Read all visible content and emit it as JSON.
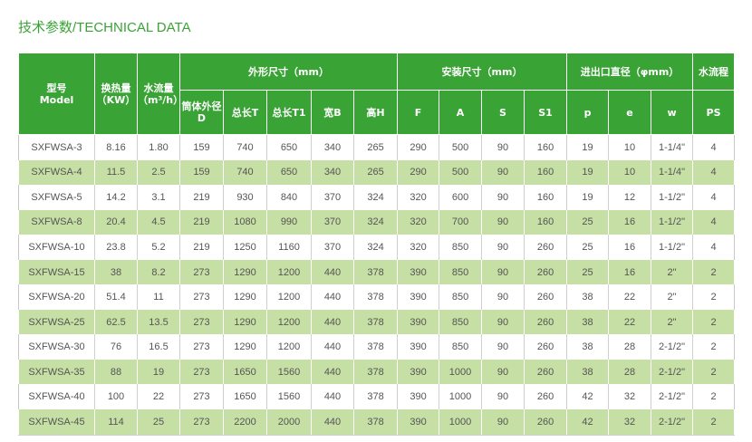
{
  "title": "技术参数/TECHNICAL DATA",
  "header": {
    "model_cn": "型号",
    "model_en": "Model",
    "heat_cn": "换热量",
    "heat_unit": "（KW）",
    "flow_cn": "水流量",
    "flow_unit": "（m³/h）",
    "group_dim": "外形尺寸（mm）",
    "group_install": "安装尺寸（mm）",
    "group_port": "进出口直径（φmm）",
    "group_stroke": "水流程",
    "sub": {
      "D_cn": "筒体外径",
      "D": "D",
      "T": "总长T",
      "T1": "总长T1",
      "B": "宽B",
      "H": "高H",
      "F": "F",
      "A": "A",
      "S": "S",
      "S1": "S1",
      "p": "p",
      "e": "e",
      "w": "w",
      "PS": "PS"
    }
  },
  "rows": [
    [
      "SXFWSA-3",
      "8.16",
      "1.80",
      "159",
      "740",
      "650",
      "340",
      "265",
      "290",
      "500",
      "90",
      "160",
      "19",
      "10",
      "1-1/4\"",
      "4"
    ],
    [
      "SXFWSA-4",
      "11.5",
      "2.5",
      "159",
      "740",
      "650",
      "340",
      "265",
      "290",
      "500",
      "90",
      "160",
      "19",
      "10",
      "1-1/4\"",
      "4"
    ],
    [
      "SXFWSA-5",
      "14.2",
      "3.1",
      "219",
      "930",
      "840",
      "370",
      "324",
      "320",
      "600",
      "90",
      "160",
      "19",
      "12",
      "1-1/2\"",
      "4"
    ],
    [
      "SXFWSA-8",
      "20.4",
      "4.5",
      "219",
      "1080",
      "990",
      "370",
      "324",
      "320",
      "700",
      "90",
      "160",
      "25",
      "16",
      "1-1/2\"",
      "4"
    ],
    [
      "SXFWSA-10",
      "23.8",
      "5.2",
      "219",
      "1250",
      "1160",
      "370",
      "324",
      "320",
      "850",
      "90",
      "260",
      "25",
      "16",
      "1-1/2\"",
      "4"
    ],
    [
      "SXFWSA-15",
      "38",
      "8.2",
      "273",
      "1290",
      "1200",
      "440",
      "378",
      "390",
      "850",
      "90",
      "260",
      "25",
      "16",
      "2\"",
      "2"
    ],
    [
      "SXFWSA-20",
      "51.4",
      "11",
      "273",
      "1290",
      "1200",
      "440",
      "378",
      "390",
      "850",
      "90",
      "260",
      "38",
      "22",
      "2\"",
      "2"
    ],
    [
      "SXFWSA-25",
      "62.5",
      "13.5",
      "273",
      "1290",
      "1200",
      "440",
      "378",
      "390",
      "850",
      "90",
      "260",
      "38",
      "22",
      "2\"",
      "2"
    ],
    [
      "SXFWSA-30",
      "76",
      "16.5",
      "273",
      "1290",
      "1200",
      "440",
      "378",
      "390",
      "850",
      "90",
      "260",
      "38",
      "28",
      "2-1/2\"",
      "2"
    ],
    [
      "SXFWSA-35",
      "88",
      "19",
      "273",
      "1650",
      "1560",
      "440",
      "378",
      "390",
      "1000",
      "90",
      "260",
      "38",
      "28",
      "2-1/2\"",
      "2"
    ],
    [
      "SXFWSA-40",
      "100",
      "22",
      "273",
      "1650",
      "1560",
      "440",
      "378",
      "390",
      "1000",
      "90",
      "260",
      "42",
      "32",
      "2-1/2\"",
      "2"
    ],
    [
      "SXFWSA-45",
      "114",
      "25",
      "273",
      "2200",
      "2000",
      "440",
      "378",
      "390",
      "1000",
      "90",
      "260",
      "42",
      "32",
      "2-1/2\"",
      "2"
    ]
  ]
}
